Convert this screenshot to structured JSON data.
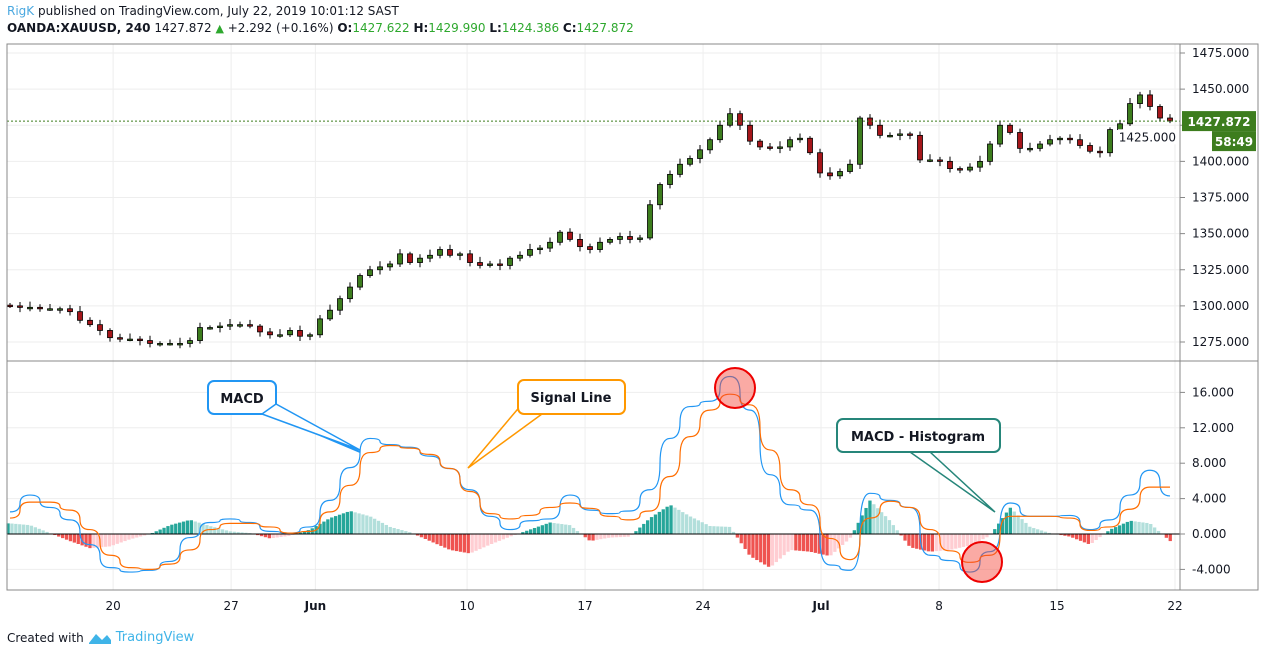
{
  "header": {
    "author": "RigK",
    "published": "published on TradingView.com, July 22, 2019 10:01:12 SAST",
    "symbol": "OANDA:XAUUSD, 240",
    "last": "1427.872",
    "change": "+2.292 (+0.16%)",
    "o_label": "O:",
    "o": "1427.622",
    "h_label": "H:",
    "h": "1429.990",
    "l_label": "L:",
    "l": "1424.386",
    "c_label": "C:",
    "c": "1427.872"
  },
  "footer": {
    "created_with": "Created with",
    "brand": "TradingView"
  },
  "colors": {
    "up": "#3d7d1e",
    "down": "#a5161a",
    "macd": "#2196f3",
    "signal": "#ff6d00",
    "hist_pos_strong": "#26a69a",
    "hist_pos_weak": "#b2dfdb",
    "hist_neg_strong": "#ef5350",
    "hist_neg_weak": "#ffcdd2",
    "last_price": "#3d7d1e"
  },
  "chart_data": [
    {
      "type": "candlestick",
      "pane": "price",
      "x_range": [
        "2019-05-14",
        "2019-07-22"
      ],
      "ylim": [
        1262,
        1480
      ],
      "yticks": [
        "1475.000",
        "1450.000",
        "1425.000",
        "1400.000",
        "1375.000",
        "1350.000",
        "1325.000",
        "1300.000",
        "1275.000"
      ],
      "ytick_values": [
        1475,
        1450,
        1425,
        1400,
        1375,
        1350,
        1325,
        1300,
        1275
      ],
      "last_price_label": "1427.872",
      "last_price": 1427.872,
      "countdown": "58:49",
      "grid": true,
      "close": [
        1300,
        1299,
        1299,
        1298,
        1298,
        1298,
        1296,
        1290,
        1287,
        1283,
        1278,
        1277,
        1277,
        1276,
        1274,
        1274,
        1274,
        1274,
        1276,
        1285,
        1285,
        1286,
        1287,
        1287,
        1286,
        1282,
        1280,
        1280,
        1283,
        1279,
        1280,
        1291,
        1297,
        1305,
        1313,
        1321,
        1325,
        1327,
        1329,
        1336,
        1330,
        1333,
        1335,
        1339,
        1335,
        1336,
        1330,
        1328,
        1329,
        1328,
        1333,
        1335,
        1339,
        1340,
        1344,
        1351,
        1346,
        1341,
        1339,
        1344,
        1346,
        1348,
        1346,
        1347,
        1370,
        1384,
        1391,
        1398,
        1402,
        1408,
        1415,
        1425,
        1433,
        1425,
        1414,
        1410,
        1409,
        1410,
        1415,
        1416,
        1406,
        1392,
        1390,
        1393,
        1398,
        1430,
        1425,
        1418,
        1418,
        1419,
        1418,
        1401,
        1401,
        1400,
        1395,
        1394,
        1396,
        1400,
        1412,
        1425,
        1420,
        1409,
        1409,
        1412,
        1415,
        1416,
        1415,
        1411,
        1407,
        1406,
        1422,
        1426,
        1440,
        1446,
        1438,
        1430,
        1428
      ]
    },
    {
      "type": "line",
      "pane": "macd",
      "x_range": [
        "2019-05-14",
        "2019-07-22"
      ],
      "ylim": [
        -6.5,
        19
      ],
      "yticks": [
        "16.000",
        "12.000",
        "8.000",
        "4.000",
        "0.000",
        "-4.000"
      ],
      "ytick_values": [
        16,
        12,
        8,
        4,
        0,
        -4
      ],
      "xticks": [
        "20",
        "27",
        "Jun",
        "10",
        "17",
        "24",
        "Jul",
        "8",
        "15",
        "22"
      ],
      "xtick_dates": [
        "2019-05-20",
        "2019-05-27",
        "2019-06-01",
        "2019-06-10",
        "2019-06-17",
        "2019-06-24",
        "2019-07-01",
        "2019-07-08",
        "2019-07-15",
        "2019-07-22"
      ],
      "series": [
        {
          "key": "macd",
          "values": [
            2.5,
            4.4,
            3.0,
            1.6,
            -1.2,
            -3.8,
            -4.3,
            -4.1,
            -3.1,
            -0.4,
            1.3,
            1.7,
            1.3,
            0.3,
            0.1,
            0.8,
            3.8,
            7.5,
            10.8,
            10.1,
            9.8,
            8.8,
            7.4,
            5.0,
            2.0,
            0.5,
            1.5,
            1.7,
            4.4,
            2.7,
            2.3,
            2.6,
            5.0,
            10.8,
            14.4,
            15.0,
            17.8,
            14.0,
            6.7,
            3.3,
            2.7,
            -3.5,
            -4.1,
            4.6,
            3.8,
            3.0,
            -2.4,
            -3.0,
            -4.3,
            -2.0,
            3.5,
            2.0,
            2.0,
            2.1,
            0.5,
            1.6,
            4.4,
            7.2,
            4.3
          ]
        },
        {
          "key": "signal",
          "values": [
            1.8,
            3.6,
            3.6,
            2.7,
            0.5,
            -2.4,
            -3.8,
            -4.0,
            -3.4,
            -1.8,
            0.5,
            1.2,
            1.2,
            0.8,
            0.1,
            0.3,
            2.5,
            5.5,
            9.2,
            10.0,
            9.7,
            9.0,
            7.4,
            4.8,
            2.3,
            1.7,
            2.1,
            3.0,
            3.5,
            2.9,
            2.0,
            1.6,
            2.6,
            6.5,
            11.0,
            14.0,
            15.8,
            14.6,
            9.5,
            5.0,
            3.3,
            -0.5,
            -2.9,
            1.8,
            3.7,
            3.0,
            0.5,
            -1.9,
            -3.2,
            -2.4,
            2.0,
            2.0,
            2.0,
            1.8,
            0.4,
            0.8,
            2.8,
            5.3,
            5.3
          ]
        },
        {
          "key": "histogram",
          "values": [
            1.2,
            1.0,
            0.1,
            -0.8,
            -1.6,
            -1.4,
            -0.6,
            0,
            1.0,
            1.6,
            0.9,
            0.3,
            0.1,
            -0.5,
            -0.2,
            0.5,
            1.8,
            2.6,
            2.0,
            0.8,
            0.2,
            -0.8,
            -1.8,
            -2.2,
            -1.2,
            -0.3,
            0.5,
            1.3,
            1.0,
            -0.8,
            -0.4,
            -0.3,
            1.8,
            3.3,
            2.0,
            0.9,
            0.8,
            -2.5,
            -3.8,
            -1.8,
            -2.0,
            -2.5,
            -0.5,
            3.8,
            1.5,
            -1.5,
            -2.0,
            -1.8,
            -1.3,
            -0.2,
            3.0,
            0.8,
            0.1,
            -0.3,
            -1.2,
            0.5,
            1.5,
            1.2,
            -0.8
          ]
        }
      ],
      "annotations": [
        {
          "text": "MACD",
          "color": "#2196f3"
        },
        {
          "text": "Signal Line",
          "color": "#ff9800"
        },
        {
          "text": "MACD - Histogram",
          "color": "#26867a"
        }
      ],
      "highlights": [
        "macd-peak-crossover",
        "macd-trough-crossover"
      ]
    }
  ]
}
